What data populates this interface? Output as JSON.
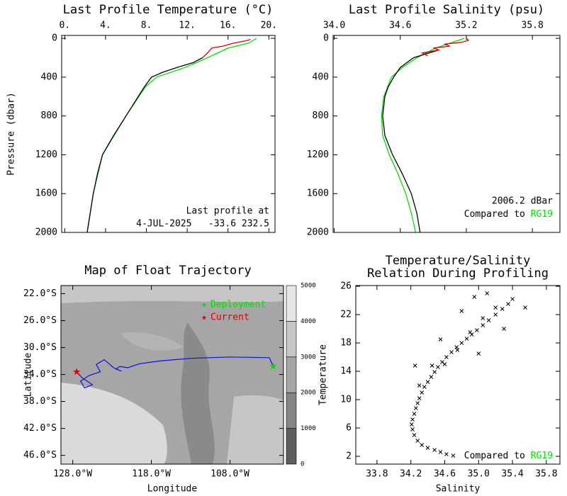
{
  "chart_data": [
    {
      "type": "line",
      "title": "Last Profile Temperature (°C)",
      "ylabel": "Pressure (dbar)",
      "xaxis_position": "top",
      "y_reversed": true,
      "xlim": [
        -0.3,
        20.6
      ],
      "ylim": [
        -30,
        2000
      ],
      "xticks": [
        {
          "value": 0,
          "label": "0."
        },
        {
          "value": 4,
          "label": "4."
        },
        {
          "value": 8,
          "label": "8."
        },
        {
          "value": 12,
          "label": "12."
        },
        {
          "value": 16,
          "label": "16."
        },
        {
          "value": 20,
          "label": "20."
        }
      ],
      "yticks": [
        0,
        400,
        800,
        1200,
        1600,
        2000
      ],
      "annotation": [
        "Last profile at",
        "4-JUL-2025   -33.6 232.5"
      ],
      "series": [
        {
          "color": "#00e000",
          "x": [
            18.8,
            18.0,
            16.0,
            14.0,
            11.8,
            9.0,
            7.9,
            6.0,
            3.7,
            2.8,
            2.2
          ],
          "y": [
            0,
            50,
            100,
            200,
            300,
            400,
            500,
            800,
            1200,
            1600,
            2000
          ]
        },
        {
          "color": "#000000",
          "x": [
            13.5,
            12.6,
            11.0,
            9.6,
            8.5,
            7.8,
            7.2,
            6.0,
            4.8,
            3.7,
            3.2,
            2.8,
            2.5,
            2.2
          ],
          "y": [
            200,
            250,
            300,
            350,
            400,
            500,
            600,
            800,
            1000,
            1200,
            1400,
            1600,
            1800,
            2000
          ]
        },
        {
          "color": "#e00000",
          "x": [
            18.2,
            18.0,
            16.5,
            15.5,
            14.4,
            14.0,
            13.5
          ],
          "y": [
            10,
            20,
            50,
            80,
            100,
            150,
            200
          ]
        }
      ]
    },
    {
      "type": "line",
      "title": "Last Profile Salinity (psu)",
      "xaxis_position": "top",
      "y_reversed": true,
      "xlim": [
        33.99,
        36.05
      ],
      "ylim": [
        -30,
        2000
      ],
      "xticks": [
        {
          "value": 34,
          "label": "34.0"
        },
        34.6,
        35.2,
        35.8
      ],
      "yticks": [
        0,
        400,
        800,
        1200,
        1600,
        2000
      ],
      "annotation": [
        "2006.2 dBar"
      ],
      "compare_text": "Compared to",
      "compare_ref": "RG19",
      "compare_color": "#00e000",
      "series": [
        {
          "color": "#00e000",
          "x": [
            35.18,
            35.05,
            34.92,
            34.75,
            34.62,
            34.52,
            34.45,
            34.43,
            34.44,
            34.5,
            34.58,
            34.65,
            34.7,
            34.74
          ],
          "y": [
            0,
            50,
            100,
            200,
            300,
            400,
            600,
            800,
            1000,
            1200,
            1400,
            1600,
            1800,
            2000
          ]
        },
        {
          "color": "#000000",
          "x": [
            34.95,
            34.72,
            34.6,
            34.54,
            34.49,
            34.46,
            34.44,
            34.46,
            34.53,
            34.62,
            34.7,
            34.75,
            34.78
          ],
          "y": [
            120,
            200,
            300,
            400,
            500,
            600,
            800,
            1000,
            1200,
            1400,
            1600,
            1800,
            2000
          ]
        },
        {
          "color": "#e00000",
          "x": [
            35.2,
            35.22,
            35.16,
            35.0,
            35.05,
            34.9,
            34.95,
            34.8,
            34.85
          ],
          "y": [
            0,
            20,
            40,
            60,
            80,
            100,
            120,
            150,
            180
          ]
        }
      ]
    },
    {
      "type": "map",
      "title": "Map of Float Trajectory",
      "xlabel": "Longitude",
      "ylabel": "Latitude",
      "xlim": [
        -129.5,
        -101.2
      ],
      "ylim": [
        -47.3,
        -20.8
      ],
      "xticks": [
        {
          "value": -128,
          "label": "128.0°W"
        },
        {
          "value": -118,
          "label": "118.0°W"
        },
        {
          "value": -108,
          "label": "108.0°W"
        }
      ],
      "yticks": [
        {
          "value": -22,
          "label": "22.0°S"
        },
        {
          "value": -26,
          "label": "26.0°S"
        },
        {
          "value": -30,
          "label": "30.0°S"
        },
        {
          "value": -34,
          "label": "34.0°S"
        },
        {
          "value": -38,
          "label": "38.0°S"
        },
        {
          "value": -42,
          "label": "42.0°S"
        },
        {
          "value": -46,
          "label": "46.0°S"
        }
      ],
      "colorbar": {
        "lim": [
          0,
          5000
        ],
        "ticks": [
          0,
          1000,
          2000,
          3000,
          4000,
          5000
        ],
        "colors": [
          "#5e5e5e",
          "#858585",
          "#a6a6a6",
          "#c6c6c6",
          "#e6e6e6"
        ]
      },
      "trajectory": {
        "color": "#1010e0",
        "lon": [
          -102.5,
          -103,
          -108,
          -113,
          -117,
          -119.5,
          -121,
          -122,
          -122.5,
          -121.8,
          -122.8,
          -124,
          -125,
          -124.5,
          -126,
          -127,
          -126.5,
          -125.5,
          -126.8,
          -127.5
        ],
        "lat": [
          -32.8,
          -31.5,
          -31.4,
          -31.6,
          -32.0,
          -32.4,
          -33.0,
          -32.8,
          -33.2,
          -33.5,
          -33.0,
          -31.8,
          -32.5,
          -33.6,
          -34.2,
          -35.0,
          -36.0,
          -35.5,
          -34.5,
          -33.6
        ]
      },
      "markers": [
        {
          "label": "Deployment",
          "color": "#00e000",
          "lon": -102.5,
          "lat": -32.8
        },
        {
          "label": "Current",
          "color": "#e00000",
          "lon": -127.5,
          "lat": -33.6
        }
      ]
    },
    {
      "type": "scatter",
      "title": [
        "Temperature/Salinity",
        "Relation During Profiling"
      ],
      "xlabel": "Salinity",
      "ylabel": "Temperature",
      "xlim": [
        33.55,
        35.96
      ],
      "ylim": [
        0.9,
        26.1
      ],
      "xticks": [
        33.8,
        34.2,
        34.6,
        {
          "value": 35,
          "label": "35.0"
        },
        35.4,
        35.8
      ],
      "yticks": [
        2,
        6,
        10,
        14,
        18,
        22,
        26
      ],
      "compare_text": "Compared to",
      "compare_ref": "RG19",
      "compare_color": "#00e000",
      "color": "#000000",
      "x": [
        34.7,
        34.62,
        34.55,
        34.48,
        34.4,
        34.33,
        34.28,
        34.24,
        34.22,
        34.21,
        34.22,
        34.24,
        34.26,
        34.28,
        34.3,
        34.33,
        34.36,
        34.4,
        34.44,
        34.48,
        34.52,
        34.57,
        34.62,
        34.68,
        34.74,
        34.8,
        34.86,
        34.92,
        34.98,
        35.05,
        35.12,
        35.2,
        35.28,
        35.35,
        34.3,
        34.45,
        34.6,
        34.75,
        34.9,
        35.05,
        35.2,
        35.4,
        35.55,
        34.95,
        35.1,
        34.8,
        34.25,
        34.55,
        35.0,
        35.3
      ],
      "y": [
        2.1,
        2.3,
        2.6,
        2.9,
        3.2,
        3.6,
        4.2,
        5.0,
        5.8,
        6.5,
        7.2,
        8.0,
        8.8,
        9.5,
        10.2,
        11.0,
        11.8,
        12.5,
        13.2,
        13.9,
        14.6,
        15.3,
        16.0,
        16.7,
        17.4,
        18.0,
        18.6,
        19.2,
        19.8,
        20.5,
        21.2,
        22.0,
        22.8,
        23.5,
        12.0,
        14.8,
        15.0,
        17.0,
        19.5,
        21.5,
        23.0,
        24.2,
        23.0,
        24.5,
        25.0,
        22.5,
        14.8,
        18.5,
        16.5,
        20.0
      ]
    }
  ]
}
